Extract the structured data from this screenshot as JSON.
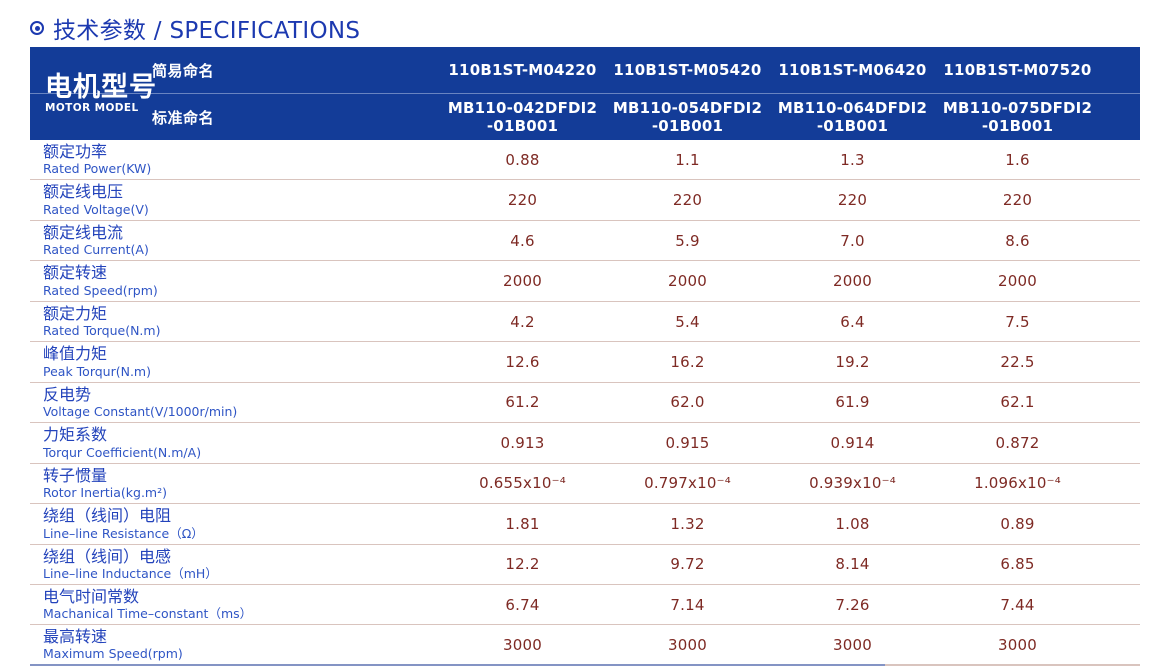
{
  "page": {
    "title": "技术参数 / SPECIFICATIONS"
  },
  "colors": {
    "navy": "#133c98",
    "title": "#1c39b0",
    "zh": "#2343bb",
    "en": "#2f55c5",
    "val": "#7e2a24",
    "divider": "#d9c4be"
  },
  "table": {
    "motor_model_zh": "电机型号",
    "motor_model_en": "MOTOR MODEL",
    "simple_name_label": "简易命名",
    "standard_name_label": "标准命名",
    "simple_names": [
      "110B1ST-M04220",
      "110B1ST-M05420",
      "110B1ST-M06420",
      "110B1ST-M07520"
    ],
    "standard_names": [
      {
        "line1": "MB110-042DFDI2",
        "line2": "-01B001"
      },
      {
        "line1": "MB110-054DFDI2",
        "line2": "-01B001"
      },
      {
        "line1": "MB110-064DFDI2",
        "line2": "-01B001"
      },
      {
        "line1": "MB110-075DFDI2",
        "line2": "-01B001"
      }
    ],
    "rows": [
      {
        "zh": "额定功率",
        "en": "Rated Power(KW)",
        "values": [
          "0.88",
          "1.1",
          "1.3",
          "1.6"
        ]
      },
      {
        "zh": "额定线电压",
        "en": "Rated Voltage(V)",
        "values": [
          "220",
          "220",
          "220",
          "220"
        ]
      },
      {
        "zh": "额定线电流",
        "en": "Rated Current(A)",
        "values": [
          "4.6",
          "5.9",
          "7.0",
          "8.6"
        ]
      },
      {
        "zh": "额定转速",
        "en": "Rated Speed(rpm)",
        "values": [
          "2000",
          "2000",
          "2000",
          "2000"
        ]
      },
      {
        "zh": "额定力矩",
        "en": "Rated Torque(N.m)",
        "values": [
          "4.2",
          "5.4",
          "6.4",
          "7.5"
        ]
      },
      {
        "zh": "峰值力矩",
        "en": "Peak Torqur(N.m)",
        "values": [
          "12.6",
          "16.2",
          "19.2",
          "22.5"
        ]
      },
      {
        "zh": "反电势",
        "en": "Voltage Constant(V/1000r/min)",
        "values": [
          "61.2",
          "62.0",
          "61.9",
          "62.1"
        ]
      },
      {
        "zh": "力矩系数",
        "en": "Torqur Coefficient(N.m/A)",
        "values": [
          "0.913",
          "0.915",
          "0.914",
          "0.872"
        ]
      },
      {
        "zh": "转子惯量",
        "en": "Rotor Inertia(kg.m²)",
        "values": [
          "0.655x10⁻⁴",
          "0.797x10⁻⁴",
          "0.939x10⁻⁴",
          "1.096x10⁻⁴"
        ]
      },
      {
        "zh": "绕组（线间）电阻",
        "en": "Line–line Resistance（Ω）",
        "values": [
          "1.81",
          "1.32",
          "1.08",
          "0.89"
        ]
      },
      {
        "zh": "绕组（线间）电感",
        "en": "Line–line Inductance（mH）",
        "values": [
          "12.2",
          "9.72",
          "8.14",
          "6.85"
        ]
      },
      {
        "zh": "电气时间常数",
        "en": "Machanical Time–constant（ms）",
        "values": [
          "6.74",
          "7.14",
          "7.26",
          "7.44"
        ]
      },
      {
        "zh": "最高转速",
        "en": "Maximum Speed(rpm)",
        "values": [
          "3000",
          "3000",
          "3000",
          "3000"
        ]
      }
    ]
  }
}
